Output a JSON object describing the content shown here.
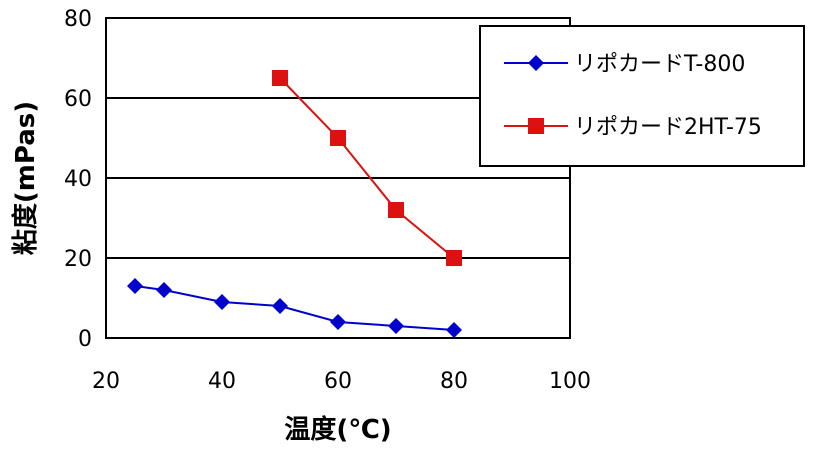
{
  "chart_data": {
    "type": "line",
    "title": "",
    "xlabel": "温度(℃)",
    "ylabel": "粘度(mPas)",
    "xlim": [
      20,
      100
    ],
    "ylim": [
      0,
      80
    ],
    "xticks": [
      20,
      40,
      60,
      80,
      100
    ],
    "yticks": [
      0,
      20,
      40,
      60,
      80
    ],
    "grid": "horizontal",
    "legend_position": "top-right",
    "series": [
      {
        "name": "リポカードT-800",
        "color": "#0000cc",
        "marker": "diamond",
        "x": [
          25,
          30,
          40,
          50,
          60,
          70,
          80
        ],
        "y": [
          13,
          12,
          9,
          8,
          4,
          3,
          2
        ]
      },
      {
        "name": "リポカード2HT-75",
        "color": "#dd1111",
        "marker": "square",
        "x": [
          50,
          60,
          70,
          80
        ],
        "y": [
          65,
          50,
          32,
          20
        ]
      }
    ]
  }
}
